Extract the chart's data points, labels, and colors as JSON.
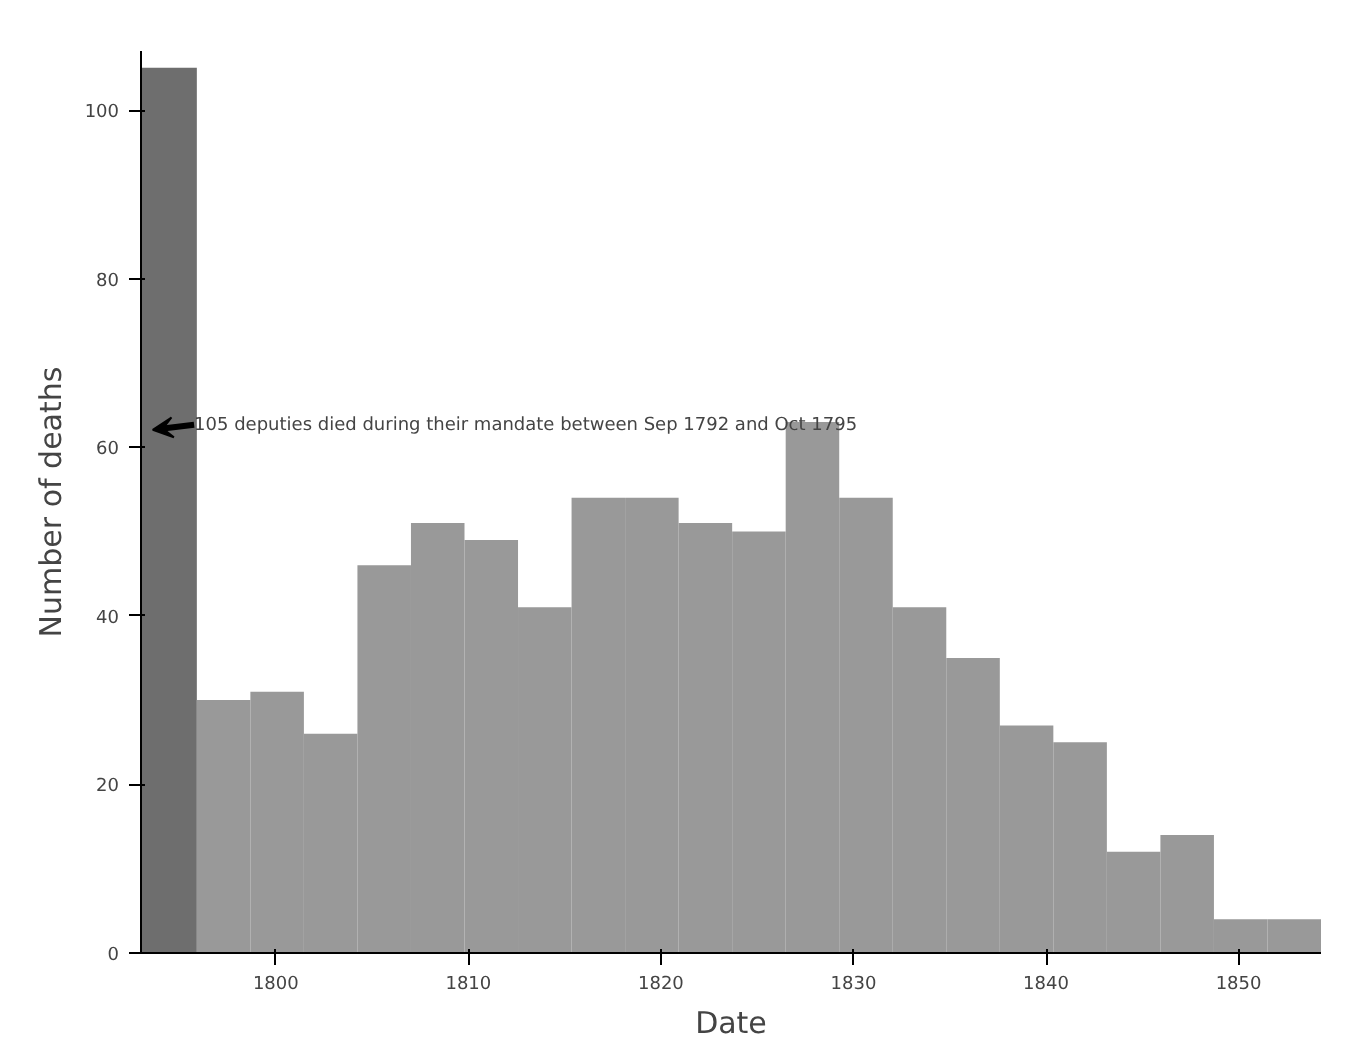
{
  "chart_data": {
    "type": "histogram",
    "xlabel": "Date",
    "ylabel": "Number of deaths",
    "bins": [
      1793.0,
      1795.9,
      1798.68,
      1801.46,
      1804.24,
      1807.02,
      1809.8,
      1812.58,
      1815.36,
      1818.14,
      1820.92,
      1823.7,
      1826.48,
      1829.26,
      1832.04,
      1834.82,
      1837.6,
      1840.38,
      1843.16,
      1845.94,
      1848.72,
      1851.5,
      1854.28
    ],
    "values": [
      105,
      30,
      31,
      26,
      46,
      51,
      49,
      41,
      54,
      54,
      51,
      50,
      63,
      54,
      41,
      35,
      27,
      25,
      12,
      14,
      4,
      4
    ],
    "colors": [
      "#6e6e6e",
      "#999999",
      "#999999",
      "#999999",
      "#999999",
      "#999999",
      "#999999",
      "#999999",
      "#999999",
      "#999999",
      "#999999",
      "#999999",
      "#999999",
      "#999999",
      "#999999",
      "#999999",
      "#999999",
      "#999999",
      "#999999",
      "#999999",
      "#999999",
      "#999999"
    ],
    "xlim": [
      1793.0,
      1854.28
    ],
    "ylim": [
      0,
      107
    ],
    "xticks": [
      1800,
      1810,
      1820,
      1830,
      1840,
      1850
    ],
    "yticks": [
      0,
      20,
      40,
      60,
      80,
      100
    ],
    "grid": false,
    "annotations": [
      "105 deputies died during their mandate between Sep 1792 and Oct 1795"
    ]
  }
}
